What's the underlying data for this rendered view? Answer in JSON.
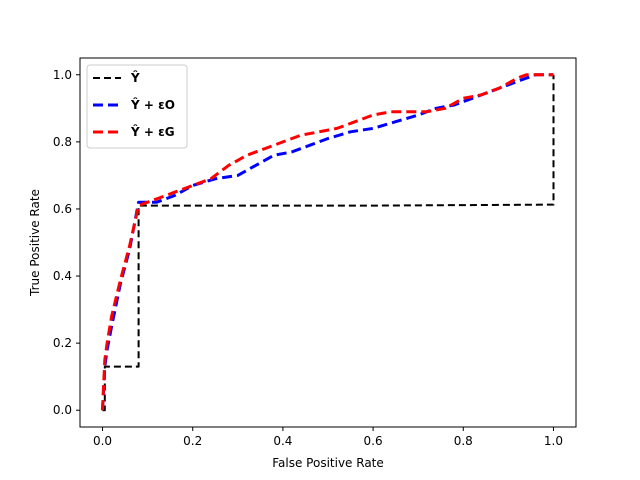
{
  "chart_data": {
    "type": "line",
    "title": "",
    "xlabel": "False Positive Rate",
    "ylabel": "True Positive Rate",
    "xlim": [
      -0.05,
      1.05
    ],
    "ylim": [
      -0.05,
      1.05
    ],
    "xticks": [
      "0.0",
      "0.2",
      "0.4",
      "0.6",
      "0.8",
      "1.0"
    ],
    "yticks": [
      "0.0",
      "0.2",
      "0.4",
      "0.6",
      "0.8",
      "1.0"
    ],
    "grid": false,
    "legend_position": "top-left",
    "series": [
      {
        "name": "Ŷ",
        "color": "#000000",
        "x": [
          0.0,
          0.005,
          0.005,
          0.08,
          0.08,
          0.6,
          1.0,
          1.0
        ],
        "y": [
          0.0,
          0.0,
          0.13,
          0.13,
          0.61,
          0.61,
          0.613,
          1.0
        ]
      },
      {
        "name": "Ŷ + εO",
        "color": "#0000ff",
        "x": [
          0.0,
          0.005,
          0.01,
          0.02,
          0.04,
          0.06,
          0.08,
          0.1,
          0.12,
          0.16,
          0.2,
          0.25,
          0.3,
          0.34,
          0.38,
          0.42,
          0.46,
          0.5,
          0.55,
          0.6,
          0.65,
          0.7,
          0.74,
          0.78,
          0.82,
          0.86,
          0.9,
          0.94,
          0.96,
          1.0
        ],
        "y": [
          0.0,
          0.13,
          0.18,
          0.25,
          0.38,
          0.48,
          0.62,
          0.62,
          0.62,
          0.64,
          0.67,
          0.69,
          0.7,
          0.73,
          0.76,
          0.77,
          0.79,
          0.81,
          0.83,
          0.84,
          0.86,
          0.88,
          0.9,
          0.91,
          0.93,
          0.95,
          0.97,
          0.99,
          1.0,
          1.0
        ]
      },
      {
        "name": "Ŷ + εG",
        "color": "#ff0000",
        "x": [
          0.0,
          0.005,
          0.01,
          0.02,
          0.04,
          0.06,
          0.08,
          0.1,
          0.12,
          0.16,
          0.2,
          0.24,
          0.28,
          0.32,
          0.36,
          0.4,
          0.44,
          0.48,
          0.52,
          0.56,
          0.6,
          0.64,
          0.68,
          0.72,
          0.76,
          0.8,
          0.84,
          0.88,
          0.92,
          0.94,
          0.97,
          1.0
        ],
        "y": [
          0.0,
          0.15,
          0.2,
          0.28,
          0.39,
          0.49,
          0.61,
          0.62,
          0.63,
          0.65,
          0.67,
          0.69,
          0.73,
          0.76,
          0.78,
          0.8,
          0.82,
          0.83,
          0.84,
          0.86,
          0.88,
          0.89,
          0.89,
          0.89,
          0.9,
          0.93,
          0.94,
          0.96,
          0.99,
          1.0,
          1.0,
          1.0
        ]
      }
    ]
  }
}
